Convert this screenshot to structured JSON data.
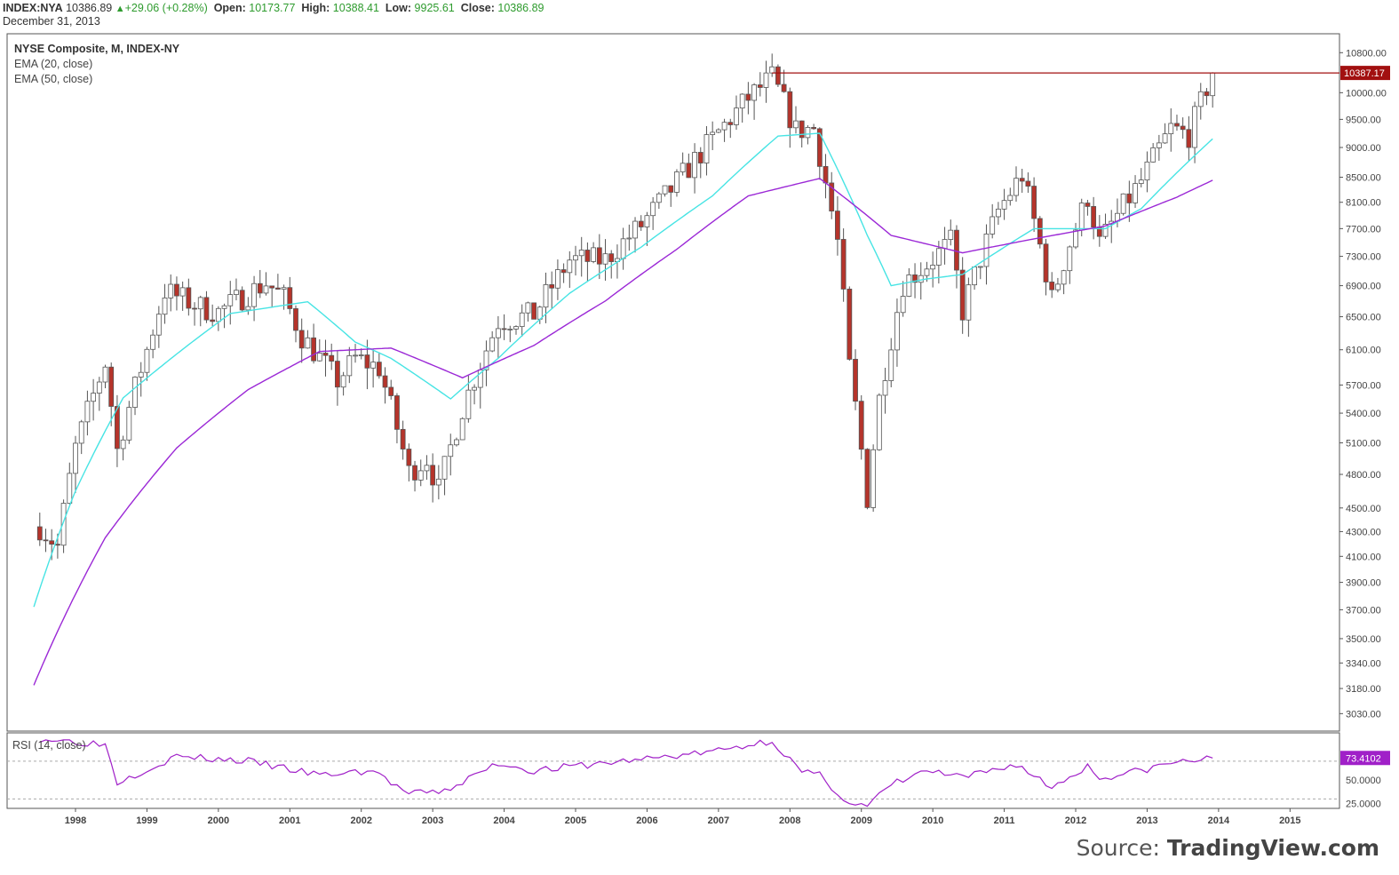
{
  "header": {
    "symbol": "INDEX:NYA",
    "price": "10386.89",
    "change": "+29.06 (+0.28%)",
    "open_label": "Open:",
    "open": "10173.77",
    "high_label": "High:",
    "high": "10388.41",
    "low_label": "Low:",
    "low": "9925.61",
    "close_label": "Close:",
    "close": "10386.89",
    "date": "December 31, 2013"
  },
  "legend": {
    "title": "NYSE Composite, M, INDEX-NY",
    "ema20": "EMA (20, close)",
    "ema50": "EMA (50, close)",
    "rsi": "RSI (14, close)"
  },
  "source": {
    "prefix": "Source: ",
    "brand": "TradingView.com"
  },
  "colors": {
    "up": "#ffffff",
    "down": "#b5342b",
    "ema20": "#47e4e4",
    "ema50": "#9b28d6",
    "rsi": "#a020c8",
    "level": "#a21010"
  },
  "chart_data": [
    {
      "type": "candlestick",
      "title": "NYSE Composite, M, INDEX-NY",
      "x_ticks": [
        "1998",
        "1999",
        "2000",
        "2001",
        "2002",
        "2003",
        "2004",
        "2005",
        "2006",
        "2007",
        "2008",
        "2009",
        "2010",
        "2011",
        "2012",
        "2013",
        "2014",
        "2015"
      ],
      "y_ticks": [
        "10800.00",
        "10000.00",
        "9500.00",
        "9000.00",
        "8500.00",
        "8100.00",
        "7700.00",
        "7300.00",
        "6900.00",
        "6500.00",
        "6100.00",
        "5700.00",
        "5400.00",
        "5100.00",
        "4800.00",
        "4500.00",
        "4300.00",
        "4100.00",
        "3900.00",
        "3700.00",
        "3500.00",
        "3340.00",
        "3180.00",
        "3030.00"
      ],
      "y_scale": "log",
      "ylim": [
        2930,
        11200
      ],
      "level_line": {
        "value": 10387.17,
        "label": "10387.17"
      },
      "close_key_points": [
        [
          "1997-07",
          4340
        ],
        [
          "1997-10",
          4180
        ],
        [
          "1998-01",
          5050
        ],
        [
          "1998-06",
          5950
        ],
        [
          "1998-08",
          5030
        ],
        [
          "1999-01",
          6100
        ],
        [
          "1999-04",
          6830
        ],
        [
          "1999-10",
          6620
        ],
        [
          "2000-01",
          6560
        ],
        [
          "2000-09",
          6940
        ],
        [
          "2000-12",
          6740
        ],
        [
          "2001-03",
          6260
        ],
        [
          "2001-09",
          5750
        ],
        [
          "2001-12",
          6000
        ],
        [
          "2002-04",
          5890
        ],
        [
          "2002-09",
          4820
        ],
        [
          "2002-12",
          4950
        ],
        [
          "2003-02",
          4660
        ],
        [
          "2003-06",
          5450
        ],
        [
          "2003-12",
          6440
        ],
        [
          "2004-06",
          6530
        ],
        [
          "2004-12",
          7250
        ],
        [
          "2005-06",
          7250
        ],
        [
          "2005-12",
          7750
        ],
        [
          "2006-05",
          8300
        ],
        [
          "2006-12",
          9140
        ],
        [
          "2007-06",
          9900
        ],
        [
          "2007-10",
          10300
        ],
        [
          "2008-02",
          9300
        ],
        [
          "2008-05",
          9340
        ],
        [
          "2008-09",
          7500
        ],
        [
          "2008-11",
          5900
        ],
        [
          "2009-02",
          4590
        ],
        [
          "2009-04",
          5550
        ],
        [
          "2009-08",
          6930
        ],
        [
          "2009-12",
          7190
        ],
        [
          "2010-04",
          7500
        ],
        [
          "2010-06",
          6570
        ],
        [
          "2010-12",
          7970
        ],
        [
          "2011-04",
          8540
        ],
        [
          "2011-09",
          6720
        ],
        [
          "2011-12",
          7480
        ],
        [
          "2012-03",
          8190
        ],
        [
          "2012-05",
          7490
        ],
        [
          "2012-12",
          8440
        ],
        [
          "2013-05",
          9330
        ],
        [
          "2013-08",
          9220
        ],
        [
          "2013-12",
          10387
        ]
      ],
      "ema20_key_points": [
        [
          "1997-06",
          3720
        ],
        [
          "1998-01",
          4650
        ],
        [
          "1998-09",
          5560
        ],
        [
          "1999-06",
          6050
        ],
        [
          "2000-03",
          6540
        ],
        [
          "2001-04",
          6690
        ],
        [
          "2001-12",
          6190
        ],
        [
          "2002-06",
          6000
        ],
        [
          "2003-04",
          5550
        ],
        [
          "2003-12",
          6000
        ],
        [
          "2004-12",
          6800
        ],
        [
          "2005-12",
          7430
        ],
        [
          "2006-12",
          8200
        ],
        [
          "2007-11",
          9200
        ],
        [
          "2008-06",
          9250
        ],
        [
          "2009-02",
          7600
        ],
        [
          "2009-06",
          6900
        ],
        [
          "2009-12",
          6990
        ],
        [
          "2010-06",
          7050
        ],
        [
          "2011-06",
          7700
        ],
        [
          "2012-06",
          7700
        ],
        [
          "2012-12",
          8000
        ],
        [
          "2013-12",
          9150
        ]
      ],
      "ema50_key_points": [
        [
          "1997-06",
          3200
        ],
        [
          "1998-06",
          4250
        ],
        [
          "1999-06",
          5050
        ],
        [
          "2000-06",
          5650
        ],
        [
          "2001-06",
          6080
        ],
        [
          "2002-06",
          6120
        ],
        [
          "2003-06",
          5780
        ],
        [
          "2004-06",
          6150
        ],
        [
          "2005-06",
          6700
        ],
        [
          "2006-06",
          7400
        ],
        [
          "2007-06",
          8200
        ],
        [
          "2008-06",
          8480
        ],
        [
          "2009-06",
          7600
        ],
        [
          "2010-06",
          7350
        ],
        [
          "2011-06",
          7550
        ],
        [
          "2012-06",
          7740
        ],
        [
          "2013-06",
          8180
        ],
        [
          "2013-12",
          8450
        ]
      ]
    },
    {
      "type": "line",
      "title": "RSI (14, close)",
      "y_ticks": [
        "73.4102",
        "50.0000",
        "25.0000"
      ],
      "ylim": [
        20,
        100
      ],
      "last_value": "73.4102",
      "key_points": [
        [
          "1997-07",
          94
        ],
        [
          "1998-06",
          88
        ],
        [
          "1998-08",
          48
        ],
        [
          "1999-06",
          75
        ],
        [
          "2000-06",
          70
        ],
        [
          "2001-06",
          55
        ],
        [
          "2002-03",
          60
        ],
        [
          "2002-09",
          35
        ],
        [
          "2003-03",
          38
        ],
        [
          "2003-12",
          68
        ],
        [
          "2004-06",
          60
        ],
        [
          "2005-12",
          72
        ],
        [
          "2006-12",
          80
        ],
        [
          "2007-10",
          92
        ],
        [
          "2008-03",
          58
        ],
        [
          "2008-06",
          55
        ],
        [
          "2008-11",
          25
        ],
        [
          "2009-02",
          22
        ],
        [
          "2009-06",
          45
        ],
        [
          "2009-12",
          60
        ],
        [
          "2010-06",
          52
        ],
        [
          "2011-03",
          67
        ],
        [
          "2011-09",
          42
        ],
        [
          "2012-03",
          65
        ],
        [
          "2012-05",
          52
        ],
        [
          "2012-12",
          60
        ],
        [
          "2013-05",
          68
        ],
        [
          "2013-12",
          73.41
        ]
      ]
    }
  ]
}
